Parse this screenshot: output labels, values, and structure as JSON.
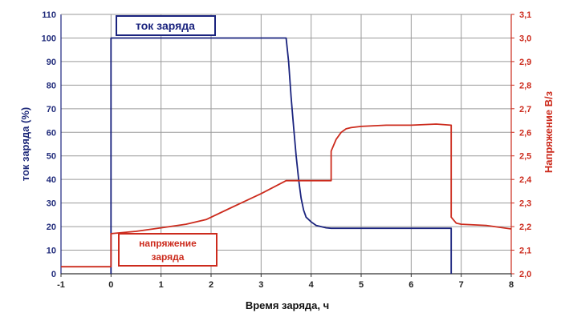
{
  "chart_data": {
    "type": "line",
    "title": "",
    "xlabel": "Время заряда, ч",
    "ylabel_left": "ток заряда (%)",
    "ylabel_right": "Напряжение В/з",
    "xlim": [
      -1,
      8
    ],
    "ylim_left": [
      0,
      110
    ],
    "ylim_right": [
      2.0,
      3.1
    ],
    "x_ticks": [
      "-1",
      "0",
      "1",
      "2",
      "3",
      "4",
      "5",
      "6",
      "7",
      "8"
    ],
    "y_left_ticks": [
      "0",
      "10",
      "20",
      "30",
      "40",
      "50",
      "60",
      "70",
      "80",
      "90",
      "100",
      "110"
    ],
    "y_right_ticks": [
      "2,0",
      "2,1",
      "2,2",
      "2,3",
      "2,4",
      "2,5",
      "2,6",
      "2,7",
      "2,8",
      "2,9",
      "3,0",
      "3,1"
    ],
    "grid": true,
    "series": [
      {
        "name": "ток заряда",
        "axis": "left",
        "color": "#1a237e",
        "x": [
          0.0,
          0.0,
          0.1,
          3.5,
          3.55,
          3.6,
          3.65,
          3.7,
          3.75,
          3.8,
          3.85,
          3.9,
          4.0,
          4.1,
          4.2,
          4.3,
          4.4,
          5.0,
          6.0,
          6.8,
          6.8
        ],
        "y": [
          0,
          100,
          100,
          100,
          90,
          75,
          62,
          50,
          40,
          32,
          27,
          24,
          22,
          20.5,
          20,
          19.5,
          19.3,
          19.3,
          19.3,
          19.3,
          0
        ]
      },
      {
        "name": "напряжение заряда",
        "axis": "right",
        "color": "#cc2b1d",
        "x": [
          -1.0,
          0.0,
          0.0,
          0.5,
          1.0,
          1.5,
          1.9,
          2.4,
          3.0,
          3.5,
          4.0,
          4.4,
          4.4,
          4.5,
          4.6,
          4.7,
          4.8,
          5.0,
          5.5,
          6.0,
          6.5,
          6.8,
          6.8,
          6.9,
          7.0,
          7.5,
          8.0
        ],
        "y": [
          2.03,
          2.03,
          2.17,
          2.18,
          2.195,
          2.21,
          2.23,
          2.28,
          2.34,
          2.395,
          2.395,
          2.395,
          2.52,
          2.57,
          2.6,
          2.615,
          2.62,
          2.625,
          2.63,
          2.63,
          2.635,
          2.63,
          2.24,
          2.215,
          2.21,
          2.205,
          2.19
        ]
      }
    ],
    "annotations": [
      "ток заряда",
      "напряжение заряда"
    ]
  }
}
